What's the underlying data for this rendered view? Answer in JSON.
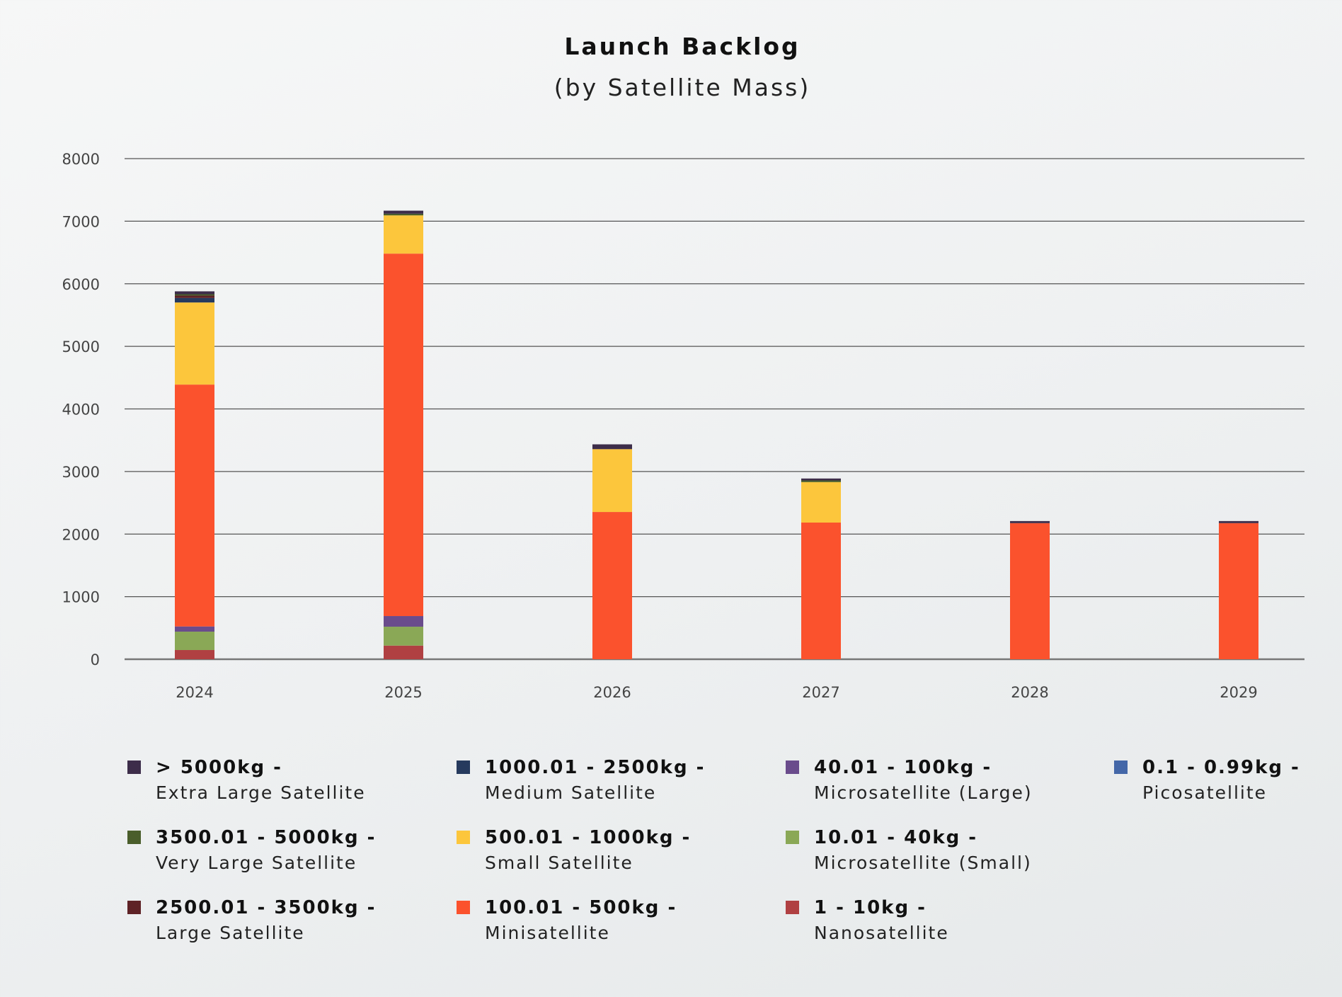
{
  "chart_data": {
    "type": "bar",
    "stacked": true,
    "title": "Launch Backlog",
    "subtitle": "(by Satellite Mass)",
    "xlabel": "",
    "ylabel": "",
    "ylim": [
      0,
      8000
    ],
    "yticks": [
      "0",
      "1000",
      "2000",
      "3000",
      "4000",
      "5000",
      "6000",
      "7000",
      "8000"
    ],
    "grid": true,
    "legend_position": "bottom",
    "categories": [
      "2024",
      "2025",
      "2026",
      "2027",
      "2028",
      "2029"
    ],
    "series": [
      {
        "name": "1 - 10kg - Nanosatellite",
        "range": "1 - 10kg -",
        "label": "Nanosatellite",
        "color": "#b04042",
        "values": [
          147,
          218,
          0,
          0,
          0,
          0
        ]
      },
      {
        "name": "10.01 - 40kg - Microsatellite (Small)",
        "range": "10.01 - 40kg -",
        "label": "Microsatellite (Small)",
        "color": "#8aa856",
        "values": [
          294,
          302,
          0,
          0,
          0,
          0
        ]
      },
      {
        "name": "40.01 - 100kg - Microsatellite (Large)",
        "range": "40.01 - 100kg -",
        "label": "Microsatellite (Large)",
        "color": "#6a4c8c",
        "values": [
          83,
          170,
          0,
          0,
          0,
          0
        ]
      },
      {
        "name": "100.01 - 500kg - Minisatellite",
        "range": "100.01 - 500kg -",
        "label": "Minisatellite",
        "color": "#fb522d",
        "values": [
          3865,
          5792,
          2353,
          2184,
          2175,
          2175
        ]
      },
      {
        "name": "500.01 - 1000kg - Small Satellite",
        "range": "500.01 - 1000kg -",
        "label": "Small Satellite",
        "color": "#fcc63c",
        "values": [
          1312,
          611,
          1004,
          647,
          0,
          0
        ]
      },
      {
        "name": "1000.01 - 2500kg - Medium Satellite",
        "range": "1000.01 - 2500kg -",
        "label": "Medium Satellite",
        "color": "#263a5e",
        "values": [
          72,
          0,
          0,
          0,
          0,
          0
        ]
      },
      {
        "name": "2500.01 - 3500kg - Large Satellite",
        "range": "2500.01 - 3500kg -",
        "label": "Large Satellite",
        "color": "#5e2226",
        "values": [
          38,
          0,
          0,
          0,
          0,
          0
        ]
      },
      {
        "name": "3500.01 - 5000kg - Very Large Satellite",
        "range": "3500.01 - 5000kg -",
        "label": "Very Large Satellite",
        "color": "#4a5e2b",
        "values": [
          22,
          26,
          0,
          26,
          0,
          0
        ]
      },
      {
        "name": "> 5000kg - Extra Large Satellite",
        "range": "> 5000kg -",
        "label": "Extra Large Satellite",
        "color": "#3d2d4a",
        "values": [
          46,
          49,
          77,
          31,
          33,
          33
        ]
      },
      {
        "name": "0.1 - 0.99kg - Picosatellite",
        "range": "0.1 - 0.99kg -",
        "label": "Picosatellite",
        "color": "#4467a8",
        "values": [
          0,
          0,
          0,
          0,
          0,
          0
        ]
      }
    ],
    "legend_order": [
      "> 5000kg - Extra Large Satellite",
      "1000.01 - 2500kg - Medium Satellite",
      "40.01 - 100kg - Microsatellite (Large)",
      "0.1 - 0.99kg - Picosatellite",
      "3500.01 - 5000kg - Very Large Satellite",
      "500.01 - 1000kg - Small Satellite",
      "10.01 - 40kg - Microsatellite (Small)",
      "2500.01 - 3500kg - Large Satellite",
      "100.01 - 500kg - Minisatellite",
      "1 - 10kg - Nanosatellite"
    ]
  }
}
